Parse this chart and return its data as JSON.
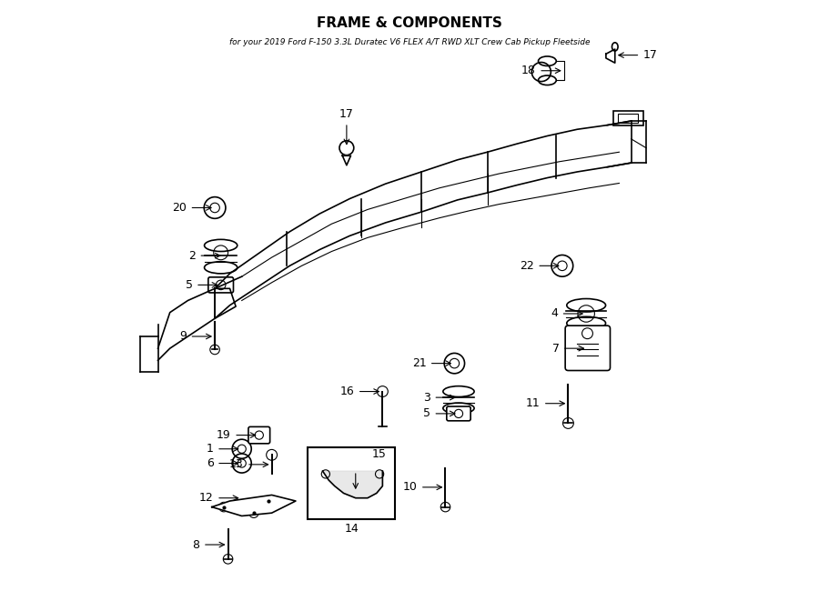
{
  "title": "FRAME & COMPONENTS",
  "subtitle": "for your 2019 Ford F-150 3.3L Duratec V6 FLEX A/T RWD XLT Crew Cab Pickup Fleetside",
  "bg_color": "#ffffff",
  "line_color": "#000000",
  "text_color": "#000000",
  "fig_width": 9.0,
  "fig_height": 6.61,
  "dpi": 100
}
